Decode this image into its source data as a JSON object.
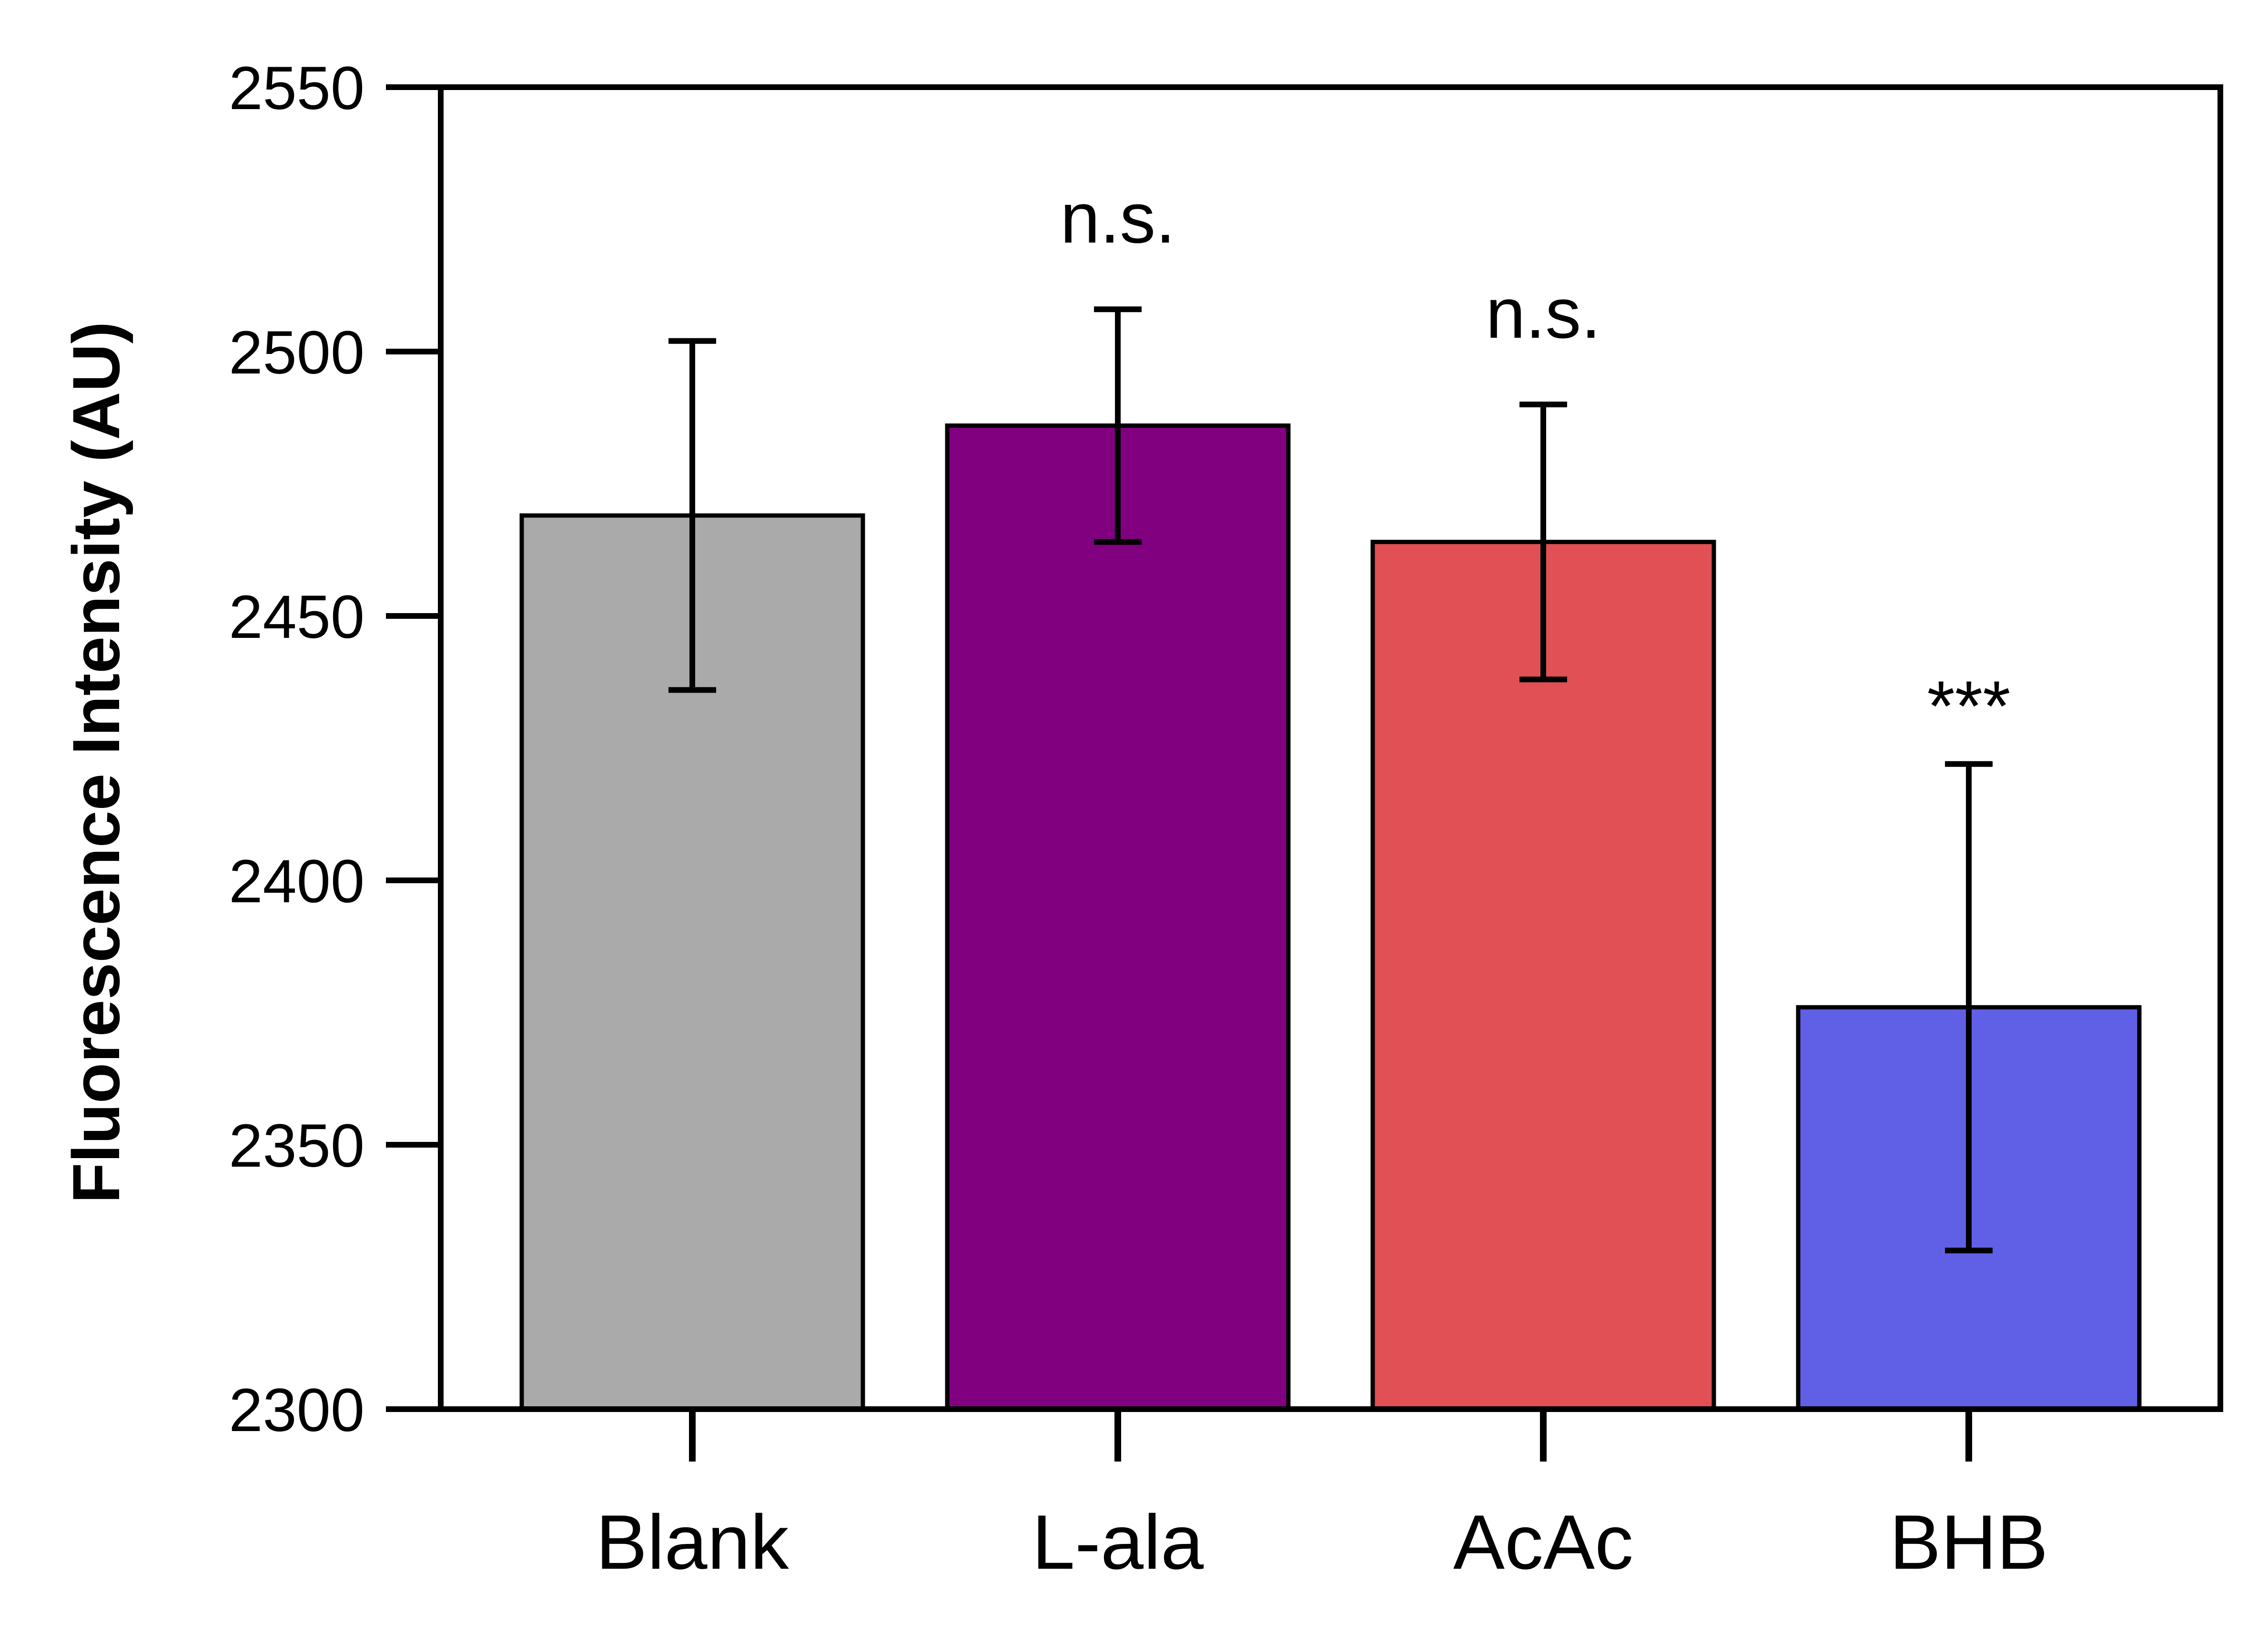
{
  "chart_data": {
    "type": "bar",
    "title": "",
    "xlabel": "",
    "ylabel": "Fluorescence Intensity (AU)",
    "ylim": [
      2300,
      2550
    ],
    "yticks": [
      2300,
      2350,
      2400,
      2450,
      2500,
      2550
    ],
    "categories": [
      "Blank",
      "L-ala",
      "AcAc",
      "BHB"
    ],
    "values": [
      2469,
      2486,
      2464,
      2376
    ],
    "errors": [
      33,
      22,
      26,
      46
    ],
    "significance": [
      "",
      "n.s.",
      "n.s.",
      "***"
    ],
    "colors": [
      "#aaaaaa",
      "#800080",
      "#e05055",
      "#6060e6"
    ],
    "grid": false,
    "legend": "none"
  }
}
